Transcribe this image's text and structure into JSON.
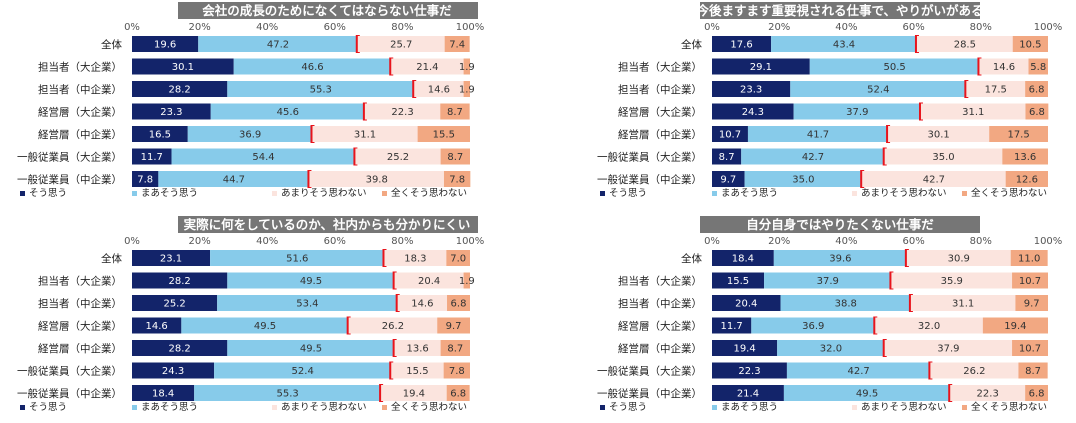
{
  "legend": [
    "そう思う",
    "まあそう思う",
    "あまりそう思わない",
    "全くそう思わない"
  ],
  "series_colors": [
    "#13246a",
    "#87cbea",
    "#fbe4de",
    "#f2a882"
  ],
  "row_labels": [
    "全体",
    "担当者（大企業）",
    "担当者（中企業）",
    "経営層（大企業）",
    "経営層（中企業）",
    "一般従業員（大企業）",
    "一般従業員（中企業）"
  ],
  "chart_data": [
    {
      "type": "bar",
      "title": "会社の成長のためになくてはならない仕事だ",
      "ticks": [
        "0%",
        "20%",
        "40%",
        "60%",
        "80%",
        "100%"
      ],
      "categories": [
        "全体",
        "担当者（大企業）",
        "担当者（中企業）",
        "経営層（大企業）",
        "経営層（中企業）",
        "一般従業員（大企業）",
        "一般従業員（中企業）"
      ],
      "series": [
        {
          "name": "そう思う",
          "values": [
            19.6,
            30.1,
            28.2,
            23.3,
            16.5,
            11.7,
            7.8
          ]
        },
        {
          "name": "まあそう思う",
          "values": [
            47.2,
            46.6,
            55.3,
            45.6,
            36.9,
            54.4,
            44.7
          ]
        },
        {
          "name": "あまりそう思わない",
          "values": [
            25.7,
            21.4,
            14.6,
            22.3,
            31.1,
            25.2,
            39.8
          ]
        },
        {
          "name": "全くそう思わない",
          "values": [
            7.4,
            1.9,
            1.9,
            8.7,
            15.5,
            8.7,
            7.8
          ]
        }
      ],
      "labels": [
        [
          "19.6",
          "47.2",
          "25.7",
          "7.4"
        ],
        [
          "30.1",
          "46.6",
          "21.4",
          "1.9"
        ],
        [
          "28.2",
          "55.3",
          "14.6",
          "1.9"
        ],
        [
          "23.3",
          "45.6",
          "22.3",
          "8.7"
        ],
        [
          "16.5",
          "36.9",
          "31.1",
          "15.5"
        ],
        [
          "11.7",
          "54.4",
          "25.2",
          "8.7"
        ],
        [
          "7.8",
          "44.7",
          "39.8",
          "7.8"
        ]
      ],
      "xlim": [
        0,
        100
      ]
    },
    {
      "type": "bar",
      "title": "今後ますます重要視される仕事で、やりがいがある",
      "ticks": [
        "0%",
        "20%",
        "40%",
        "60%",
        "80%",
        "100%"
      ],
      "categories": [
        "全体",
        "担当者（大企業）",
        "担当者（中企業）",
        "経営層（大企業）",
        "経営層（中企業）",
        "一般従業員（大企業）",
        "一般従業員（中企業）"
      ],
      "series": [
        {
          "name": "そう思う",
          "values": [
            17.6,
            29.1,
            23.3,
            24.3,
            10.7,
            8.7,
            9.7
          ]
        },
        {
          "name": "まあそう思う",
          "values": [
            43.4,
            50.5,
            52.4,
            37.9,
            41.7,
            42.7,
            35.0
          ]
        },
        {
          "name": "あまりそう思わない",
          "values": [
            28.5,
            14.6,
            17.5,
            31.1,
            30.1,
            35.0,
            42.7
          ]
        },
        {
          "name": "全くそう思わない",
          "values": [
            10.5,
            5.8,
            6.8,
            6.8,
            17.5,
            13.6,
            12.6
          ]
        }
      ],
      "labels": [
        [
          "17.6",
          "43.4",
          "28.5",
          "10.5"
        ],
        [
          "29.1",
          "50.5",
          "14.6",
          "5.8"
        ],
        [
          "23.3",
          "52.4",
          "17.5",
          "6.8"
        ],
        [
          "24.3",
          "37.9",
          "31.1",
          "6.8"
        ],
        [
          "10.7",
          "41.7",
          "30.1",
          "17.5"
        ],
        [
          "8.7",
          "42.7",
          "35.0",
          "13.6"
        ],
        [
          "9.7",
          "35.0",
          "42.7",
          "12.6"
        ]
      ],
      "xlim": [
        0,
        100
      ]
    },
    {
      "type": "bar",
      "title": "実際に何をしているのか、社内からも分かりにくい",
      "ticks": [
        "0%",
        "20%",
        "40%",
        "60%",
        "80%",
        "100%"
      ],
      "categories": [
        "全体",
        "担当者（大企業）",
        "担当者（中企業）",
        "経営層（大企業）",
        "経営層（中企業）",
        "一般従業員（大企業）",
        "一般従業員（中企業）"
      ],
      "series": [
        {
          "name": "そう思う",
          "values": [
            23.1,
            28.2,
            25.2,
            14.6,
            28.2,
            24.3,
            18.4
          ]
        },
        {
          "name": "まあそう思う",
          "values": [
            51.6,
            49.5,
            53.4,
            49.5,
            49.5,
            52.4,
            55.3
          ]
        },
        {
          "name": "あまりそう思わない",
          "values": [
            18.3,
            20.4,
            14.6,
            26.2,
            13.6,
            15.5,
            19.4
          ]
        },
        {
          "name": "全くそう思わない",
          "values": [
            7.0,
            1.9,
            6.8,
            9.7,
            8.7,
            7.8,
            6.8
          ]
        }
      ],
      "labels": [
        [
          "23.1",
          "51.6",
          "18.3",
          "7.0"
        ],
        [
          "28.2",
          "49.5",
          "20.4",
          "1.9"
        ],
        [
          "25.2",
          "53.4",
          "14.6",
          "6.8"
        ],
        [
          "14.6",
          "49.5",
          "26.2",
          "9.7"
        ],
        [
          "28.2",
          "49.5",
          "13.6",
          "8.7"
        ],
        [
          "24.3",
          "52.4",
          "15.5",
          "7.8"
        ],
        [
          "18.4",
          "55.3",
          "19.4",
          "6.8"
        ]
      ],
      "xlim": [
        0,
        100
      ]
    },
    {
      "type": "bar",
      "title": "自分自身ではやりたくない仕事だ",
      "ticks": [
        "0%",
        "20%",
        "40%",
        "60%",
        "80%",
        "100%"
      ],
      "categories": [
        "全体",
        "担当者（大企業）",
        "担当者（中企業）",
        "経営層（大企業）",
        "経営層（中企業）",
        "一般従業員（大企業）",
        "一般従業員（中企業）"
      ],
      "series": [
        {
          "name": "そう思う",
          "values": [
            18.4,
            15.5,
            20.4,
            11.7,
            19.4,
            22.3,
            21.4
          ]
        },
        {
          "name": "まあそう思う",
          "values": [
            39.6,
            37.9,
            38.8,
            36.9,
            32.0,
            42.7,
            49.5
          ]
        },
        {
          "name": "あまりそう思わない",
          "values": [
            30.9,
            35.9,
            31.1,
            32.0,
            37.9,
            26.2,
            22.3
          ]
        },
        {
          "name": "全くそう思わない",
          "values": [
            11.0,
            10.7,
            9.7,
            19.4,
            10.7,
            8.7,
            6.8
          ]
        }
      ],
      "labels": [
        [
          "18.4",
          "39.6",
          "30.9",
          "11.0"
        ],
        [
          "15.5",
          "37.9",
          "35.9",
          "10.7"
        ],
        [
          "20.4",
          "38.8",
          "31.1",
          "9.7"
        ],
        [
          "11.7",
          "36.9",
          "32.0",
          "19.4"
        ],
        [
          "19.4",
          "32.0",
          "37.9",
          "10.7"
        ],
        [
          "22.3",
          "42.7",
          "26.2",
          "8.7"
        ],
        [
          "21.4",
          "49.5",
          "22.3",
          "6.8"
        ]
      ],
      "xlim": [
        0,
        100
      ]
    }
  ]
}
